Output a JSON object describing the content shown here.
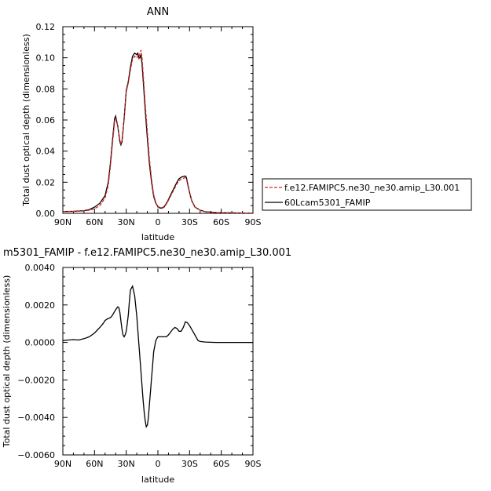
{
  "chart_data": [
    {
      "type": "line",
      "title": "ANN",
      "xlabel": "latitude",
      "ylabel": "Total dust optical depth (dimensionless)",
      "xlim": [
        90,
        -90
      ],
      "ylim": [
        0,
        0.12
      ],
      "x_ticks": [
        90,
        60,
        30,
        0,
        -30,
        -60,
        -90
      ],
      "x_tick_labels": [
        "90N",
        "60N",
        "30N",
        "0",
        "30S",
        "60S",
        "90S"
      ],
      "y_ticks": [
        0,
        0.02,
        0.04,
        0.06,
        0.08,
        0.1,
        0.12
      ],
      "y_tick_labels": [
        "0.00",
        "0.02",
        "0.04",
        "0.06",
        "0.08",
        "0.10",
        "0.12"
      ],
      "legend_position": "right",
      "series": [
        {
          "name": "f.e12.FAMIPC5.ne30_ne30.amip_L30.001",
          "color": "#d62728",
          "dash": "dashed",
          "x": [
            90,
            80,
            70,
            65,
            60,
            55,
            50,
            47,
            45,
            43,
            41,
            40,
            38,
            36,
            35,
            34,
            32,
            30,
            28,
            26,
            24,
            22,
            20,
            19,
            18,
            17,
            16,
            15,
            14,
            12,
            10,
            8,
            6,
            4,
            2,
            0,
            -3,
            -6,
            -9,
            -12,
            -15,
            -18,
            -20,
            -22,
            -24,
            -26,
            -27,
            -28,
            -30,
            -32,
            -35,
            -40,
            -45,
            -50,
            -55,
            -60,
            -70,
            -80,
            -90
          ],
          "y": [
            0.001,
            0.0012,
            0.0015,
            0.002,
            0.003,
            0.005,
            0.01,
            0.018,
            0.03,
            0.045,
            0.059,
            0.061,
            0.056,
            0.047,
            0.045,
            0.047,
            0.06,
            0.078,
            0.084,
            0.092,
            0.099,
            0.101,
            0.1,
            0.1015,
            0.099,
            0.103,
            0.105,
            0.1,
            0.09,
            0.07,
            0.052,
            0.035,
            0.022,
            0.012,
            0.007,
            0.004,
            0.003,
            0.004,
            0.007,
            0.011,
            0.015,
            0.019,
            0.021,
            0.022,
            0.0225,
            0.023,
            0.022,
            0.019,
            0.013,
            0.008,
            0.004,
            0.002,
            0.001,
            0.0008,
            0.0005,
            0.0004,
            0.0003,
            0.0002,
            0.0001
          ]
        },
        {
          "name": "60Lcam5301_FAMIP",
          "color": "#000000",
          "dash": "solid",
          "x": [
            90,
            80,
            70,
            65,
            60,
            55,
            50,
            47,
            45,
            43,
            41,
            40,
            38,
            36,
            35,
            34,
            32,
            30,
            28,
            26,
            24,
            22,
            20,
            19,
            18,
            17,
            16,
            15,
            14,
            12,
            10,
            8,
            6,
            4,
            2,
            0,
            -3,
            -6,
            -9,
            -12,
            -15,
            -18,
            -20,
            -22,
            -24,
            -26,
            -27,
            -28,
            -30,
            -32,
            -35,
            -40,
            -45,
            -50,
            -55,
            -60,
            -70,
            -80,
            -90
          ],
          "y": [
            0.0011,
            0.0013,
            0.0017,
            0.0024,
            0.004,
            0.0065,
            0.0115,
            0.02,
            0.032,
            0.047,
            0.061,
            0.0625,
            0.056,
            0.046,
            0.044,
            0.046,
            0.061,
            0.079,
            0.085,
            0.094,
            0.101,
            0.103,
            0.102,
            0.103,
            0.1,
            0.1,
            0.102,
            0.096,
            0.086,
            0.066,
            0.048,
            0.032,
            0.02,
            0.011,
            0.0065,
            0.0043,
            0.0033,
            0.0043,
            0.0075,
            0.0118,
            0.016,
            0.02,
            0.0222,
            0.0232,
            0.0237,
            0.024,
            0.023,
            0.0198,
            0.0135,
            0.0082,
            0.0041,
            0.002,
            0.001,
            0.0008,
            0.0005,
            0.0004,
            0.0003,
            0.0002,
            0.0001
          ]
        }
      ]
    },
    {
      "type": "line",
      "title": "m5301_FAMIP - f.e12.FAMIPC5.ne30_ne30.amip_L30.001",
      "xlabel": "latitude",
      "ylabel": "Total dust optical depth (dimensionless)",
      "xlim": [
        90,
        -90
      ],
      "ylim": [
        -0.006,
        0.004
      ],
      "x_ticks": [
        90,
        60,
        30,
        0,
        -30,
        -60,
        -90
      ],
      "x_tick_labels": [
        "90N",
        "60N",
        "30N",
        "0",
        "30S",
        "60S",
        "90S"
      ],
      "y_ticks": [
        -0.006,
        -0.004,
        -0.002,
        0,
        0.002,
        0.004
      ],
      "y_tick_labels": [
        "−0.0060",
        "−0.0040",
        "−0.0020",
        "0.0000",
        "0.0020",
        "0.0040"
      ],
      "series": [
        {
          "color": "#000000",
          "dash": "solid",
          "x": [
            90,
            85,
            80,
            75,
            70,
            65,
            60,
            55,
            52,
            50,
            48,
            46,
            44,
            42,
            40,
            38,
            37,
            36,
            35,
            34,
            33,
            32,
            31,
            30,
            29,
            28,
            27,
            26,
            24,
            22,
            20,
            18,
            16,
            14,
            13,
            12,
            11,
            10,
            9,
            8,
            7,
            6,
            5,
            4,
            2,
            0,
            -2,
            -4,
            -6,
            -8,
            -10,
            -12,
            -14,
            -16,
            -18,
            -20,
            -22,
            -24,
            -26,
            -28,
            -30,
            -32,
            -34,
            -36,
            -38,
            -40,
            -45,
            -50,
            -55,
            -60,
            -70,
            -80,
            -90
          ],
          "y": [
            0.0001,
            0.00013,
            0.00015,
            0.00013,
            0.0002,
            0.0003,
            0.0005,
            0.0008,
            0.001,
            0.00117,
            0.00125,
            0.0013,
            0.00137,
            0.00155,
            0.00175,
            0.0019,
            0.00185,
            0.0016,
            0.00115,
            0.0007,
            0.0004,
            0.0003,
            0.0004,
            0.0006,
            0.001,
            0.0015,
            0.0022,
            0.0028,
            0.003,
            0.0025,
            0.0014,
            -0.0001,
            -0.0016,
            -0.0031,
            -0.0037,
            -0.0042,
            -0.0045,
            -0.0044,
            -0.004,
            -0.0033,
            -0.0026,
            -0.0019,
            -0.0012,
            -0.0005,
            0.0001,
            0.0003,
            0.0003,
            0.0003,
            0.0003,
            0.0003,
            0.0004,
            0.00055,
            0.0007,
            0.0008,
            0.00075,
            0.0006,
            0.0006,
            0.0008,
            0.0011,
            0.00105,
            0.0009,
            0.0007,
            0.0005,
            0.0003,
            0.0001,
            5e-05,
            2e-05,
            1e-05,
            0.0,
            0.0,
            0.0,
            0.0,
            0.0
          ]
        }
      ]
    }
  ]
}
